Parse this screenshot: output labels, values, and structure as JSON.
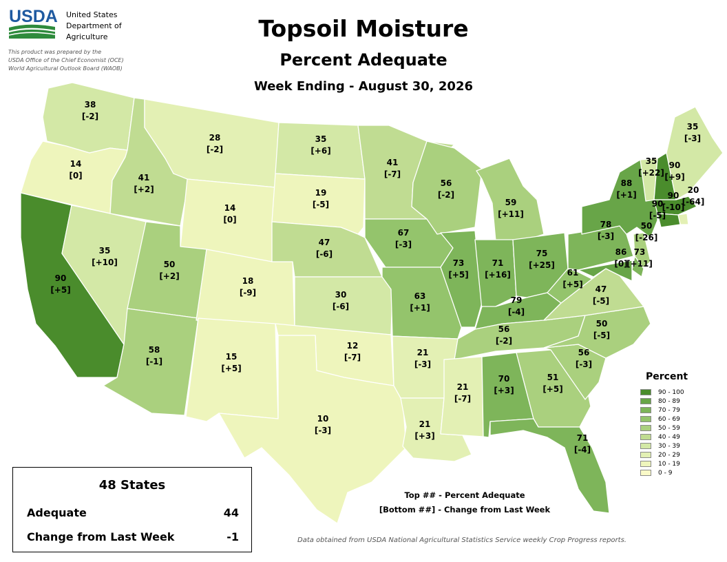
{
  "header": {
    "org_name_lines": [
      "United States",
      "Department of",
      "Agriculture"
    ],
    "logo_text": "USDA",
    "prepared_lines": [
      "This product was prepared by the",
      "USDA Office of the Chief Economist (OCE)",
      "World Agricultural Outlook Board (WAOB)"
    ],
    "title": "Topsoil Moisture",
    "subtitle": "Percent Adequate",
    "week": "Week Ending - August 30, 2026"
  },
  "colors": {
    "brand": "#1f5aa0",
    "logo_green": "#2e8b3c",
    "border": "#ffffff",
    "bins": [
      "#fafac8",
      "#eef5bc",
      "#e3f0b4",
      "#d3e8a6",
      "#c0dc92",
      "#aad07e",
      "#94c46c",
      "#7eb55a",
      "#68a548",
      "#4a8c2c"
    ]
  },
  "legend": {
    "title": "Percent",
    "items": [
      "90 - 100",
      "80 - 89",
      "70 - 79",
      "60 - 69",
      "50 - 59",
      "40 - 49",
      "30 - 39",
      "20 - 29",
      "10 - 19",
      "0 - 9"
    ]
  },
  "map_data": {
    "states": [
      {
        "code": "WA",
        "adequate": 38,
        "change": -2,
        "adequate_label": "38",
        "change_label": "[-2]"
      },
      {
        "code": "OR",
        "adequate": 14,
        "change": 0,
        "adequate_label": "14",
        "change_label": "[0]"
      },
      {
        "code": "CA",
        "adequate": 90,
        "change": 5,
        "adequate_label": "90",
        "change_label": "[+5]"
      },
      {
        "code": "ID",
        "adequate": 41,
        "change": 2,
        "adequate_label": "41",
        "change_label": "[+2]"
      },
      {
        "code": "NV",
        "adequate": 35,
        "change": 10,
        "adequate_label": "35",
        "change_label": "[+10]"
      },
      {
        "code": "MT",
        "adequate": 28,
        "change": -2,
        "adequate_label": "28",
        "change_label": "[-2]"
      },
      {
        "code": "WY",
        "adequate": 14,
        "change": 0,
        "adequate_label": "14",
        "change_label": "[0]"
      },
      {
        "code": "UT",
        "adequate": 50,
        "change": 2,
        "adequate_label": "50",
        "change_label": "[+2]"
      },
      {
        "code": "AZ",
        "adequate": 58,
        "change": -1,
        "adequate_label": "58",
        "change_label": "[-1]"
      },
      {
        "code": "CO",
        "adequate": 18,
        "change": -9,
        "adequate_label": "18",
        "change_label": "[-9]"
      },
      {
        "code": "NM",
        "adequate": 15,
        "change": 5,
        "adequate_label": "15",
        "change_label": "[+5]"
      },
      {
        "code": "ND",
        "adequate": 35,
        "change": 6,
        "adequate_label": "35",
        "change_label": "[+6]"
      },
      {
        "code": "SD",
        "adequate": 19,
        "change": -5,
        "adequate_label": "19",
        "change_label": "[-5]"
      },
      {
        "code": "NE",
        "adequate": 47,
        "change": -6,
        "adequate_label": "47",
        "change_label": "[-6]"
      },
      {
        "code": "KS",
        "adequate": 30,
        "change": -6,
        "adequate_label": "30",
        "change_label": "[-6]"
      },
      {
        "code": "OK",
        "adequate": 12,
        "change": -7,
        "adequate_label": "12",
        "change_label": "[-7]"
      },
      {
        "code": "TX",
        "adequate": 10,
        "change": -3,
        "adequate_label": "10",
        "change_label": "[-3]"
      },
      {
        "code": "MN",
        "adequate": 41,
        "change": -7,
        "adequate_label": "41",
        "change_label": "[-7]"
      },
      {
        "code": "IA",
        "adequate": 67,
        "change": -3,
        "adequate_label": "67",
        "change_label": "[-3]"
      },
      {
        "code": "MO",
        "adequate": 63,
        "change": 1,
        "adequate_label": "63",
        "change_label": "[+1]"
      },
      {
        "code": "AR",
        "adequate": 21,
        "change": -3,
        "adequate_label": "21",
        "change_label": "[-3]"
      },
      {
        "code": "LA",
        "adequate": 21,
        "change": 3,
        "adequate_label": "21",
        "change_label": "[+3]"
      },
      {
        "code": "WI",
        "adequate": 56,
        "change": -2,
        "adequate_label": "56",
        "change_label": "[-2]"
      },
      {
        "code": "IL",
        "adequate": 73,
        "change": 5,
        "adequate_label": "73",
        "change_label": "[+5]"
      },
      {
        "code": "MI",
        "adequate": 59,
        "change": 11,
        "adequate_label": "59",
        "change_label": "[+11]"
      },
      {
        "code": "IN",
        "adequate": 71,
        "change": 16,
        "adequate_label": "71",
        "change_label": "[+16]"
      },
      {
        "code": "OH",
        "adequate": 75,
        "change": 25,
        "adequate_label": "75",
        "change_label": "[+25]"
      },
      {
        "code": "KY",
        "adequate": 79,
        "change": -4,
        "adequate_label": "79",
        "change_label": "[-4]"
      },
      {
        "code": "TN",
        "adequate": 56,
        "change": -2,
        "adequate_label": "56",
        "change_label": "[-2]"
      },
      {
        "code": "MS",
        "adequate": 21,
        "change": -7,
        "adequate_label": "21",
        "change_label": "[-7]"
      },
      {
        "code": "AL",
        "adequate": 70,
        "change": 3,
        "adequate_label": "70",
        "change_label": "[+3]"
      },
      {
        "code": "GA",
        "adequate": 51,
        "change": 5,
        "adequate_label": "51",
        "change_label": "[+5]"
      },
      {
        "code": "FL",
        "adequate": 71,
        "change": -4,
        "adequate_label": "71",
        "change_label": "[-4]"
      },
      {
        "code": "SC",
        "adequate": 56,
        "change": -3,
        "adequate_label": "56",
        "change_label": "[-3]"
      },
      {
        "code": "NC",
        "adequate": 50,
        "change": -5,
        "adequate_label": "50",
        "change_label": "[-5]"
      },
      {
        "code": "VA",
        "adequate": 47,
        "change": -5,
        "adequate_label": "47",
        "change_label": "[-5]"
      },
      {
        "code": "WV",
        "adequate": 61,
        "change": 5,
        "adequate_label": "61",
        "change_label": "[+5]"
      },
      {
        "code": "PA",
        "adequate": 78,
        "change": -3,
        "adequate_label": "78",
        "change_label": "[-3]"
      },
      {
        "code": "NY",
        "adequate": 88,
        "change": 1,
        "adequate_label": "88",
        "change_label": "[+1]"
      },
      {
        "code": "VT",
        "adequate": 35,
        "change": 22,
        "adequate_label": "35",
        "change_label": "[+22]"
      },
      {
        "code": "NH",
        "adequate": 90,
        "change": 9,
        "adequate_label": "90",
        "change_label": "[+9]"
      },
      {
        "code": "ME",
        "adequate": 35,
        "change": -3,
        "adequate_label": "35",
        "change_label": "[-3]"
      },
      {
        "code": "MA",
        "adequate": 90,
        "change": -10,
        "adequate_label": "90",
        "change_label": "[-10]"
      },
      {
        "code": "RI",
        "adequate": 20,
        "change": -64,
        "adequate_label": "20",
        "change_label": "[-64]"
      },
      {
        "code": "CT",
        "adequate": 90,
        "change": -5,
        "adequate_label": "90",
        "change_label": "[-5]"
      },
      {
        "code": "NJ",
        "adequate": 50,
        "change": -26,
        "adequate_label": "50",
        "change_label": "[-26]"
      },
      {
        "code": "DE",
        "adequate": 73,
        "change": 11,
        "adequate_label": "73",
        "change_label": "[+11]"
      },
      {
        "code": "MD",
        "adequate": 86,
        "change": 0,
        "adequate_label": "86",
        "change_label": "[0]"
      }
    ]
  },
  "summary": {
    "title": "48 States",
    "adequate_label": "Adequate",
    "adequate_value": "44",
    "change_label": "Change from Last Week",
    "change_value": "-1"
  },
  "notes": {
    "top": "Top ## - Percent Adequate",
    "bottom": "[Bottom ##] - Change from Last Week"
  },
  "source": "Data obtained from USDA National Agricultural Statistics Service weekly Crop Progress reports."
}
